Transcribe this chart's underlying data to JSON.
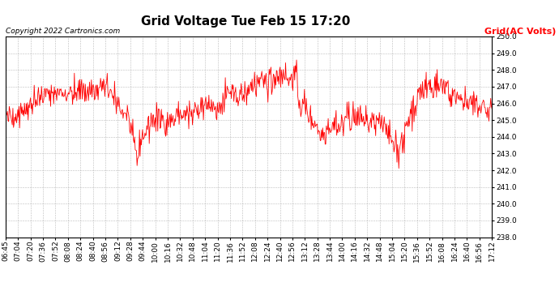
{
  "title": "Grid Voltage Tue Feb 15 17:20",
  "copyright": "Copyright 2022 Cartronics.com",
  "legend_label": "Grid(AC Volts)",
  "line_color": "#ff0000",
  "legend_color": "#ff0000",
  "background_color": "#ffffff",
  "grid_color": "#aaaaaa",
  "ylim": [
    238.0,
    250.0
  ],
  "yticks": [
    238.0,
    239.0,
    240.0,
    241.0,
    242.0,
    243.0,
    244.0,
    245.0,
    246.0,
    247.0,
    248.0,
    249.0,
    250.0
  ],
  "xtick_labels": [
    "06:45",
    "07:04",
    "07:20",
    "07:36",
    "07:52",
    "08:08",
    "08:24",
    "08:40",
    "08:56",
    "09:12",
    "09:28",
    "09:44",
    "10:00",
    "10:16",
    "10:32",
    "10:48",
    "11:04",
    "11:20",
    "11:36",
    "11:52",
    "12:08",
    "12:24",
    "12:40",
    "12:56",
    "13:12",
    "13:28",
    "13:44",
    "14:00",
    "14:16",
    "14:32",
    "14:48",
    "15:04",
    "15:20",
    "15:36",
    "15:52",
    "16:08",
    "16:24",
    "16:40",
    "16:56",
    "17:12"
  ],
  "title_fontsize": 11,
  "axis_fontsize": 6.5,
  "copyright_fontsize": 6.5,
  "legend_fontsize": 8,
  "line_width": 0.6
}
